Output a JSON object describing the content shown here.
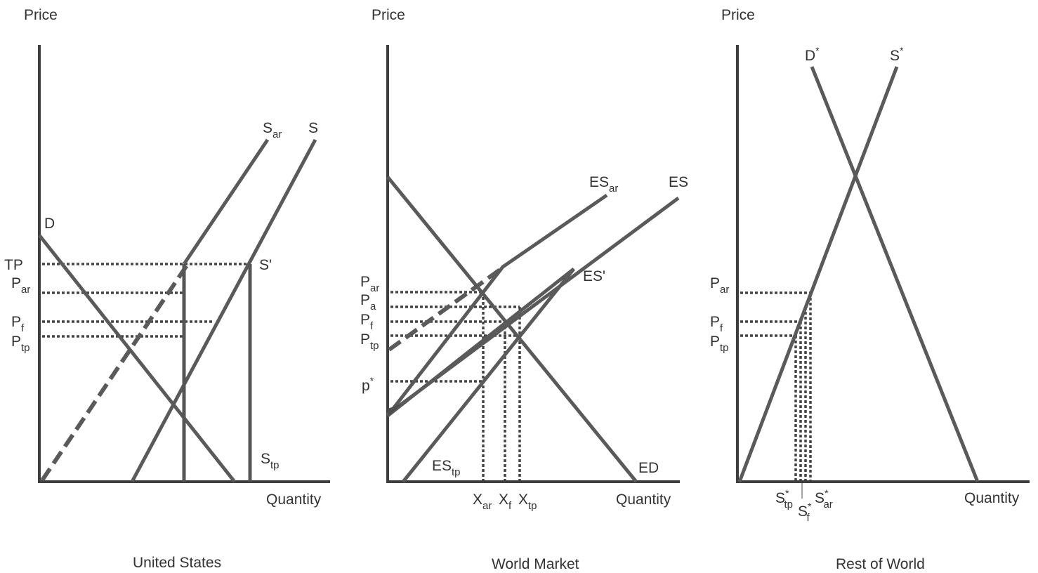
{
  "panels": {
    "us": {
      "axis_y": "Price",
      "axis_x": "Quantity",
      "caption": "United States",
      "curves": {
        "demand": "D",
        "supply": "S",
        "supply_ar": {
          "base": "S",
          "sub": "ar"
        },
        "supply_prime": "S'",
        "supply_tp": {
          "base": "S",
          "sub": "tp"
        }
      },
      "price_labels": {
        "tp": "TP",
        "p_ar": {
          "base": "P",
          "sub": "ar"
        },
        "p_f": {
          "base": "P",
          "sub": "f"
        },
        "p_tp": {
          "base": "P",
          "sub": "tp"
        }
      }
    },
    "world": {
      "axis_y": "Price",
      "axis_x": "Quantity",
      "caption": "World Market",
      "curves": {
        "es": "ES",
        "es_ar": {
          "base": "ES",
          "sub": "ar"
        },
        "es_prime": "ES'",
        "es_tp": {
          "base": "ES",
          "sub": "tp"
        },
        "ed": "ED"
      },
      "price_labels": {
        "p_ar": {
          "base": "P",
          "sub": "ar"
        },
        "p_a": {
          "base": "P",
          "sub": "a"
        },
        "p_f": {
          "base": "P",
          "sub": "f"
        },
        "p_tp": {
          "base": "P",
          "sub": "tp"
        },
        "p_star": {
          "base": "p",
          "sup": "*"
        }
      },
      "quantity_labels": {
        "x_ar": {
          "base": "X",
          "sub": "ar"
        },
        "x_f": {
          "base": "X",
          "sub": "f"
        },
        "x_tp": {
          "base": "X",
          "sub": "tp"
        }
      }
    },
    "row": {
      "axis_y": "Price",
      "axis_x": "Quantity",
      "caption": "Rest of World",
      "curves": {
        "demand": {
          "base": "D",
          "sup": "*"
        },
        "supply": {
          "base": "S",
          "sup": "*"
        }
      },
      "price_labels": {
        "p_ar": {
          "base": "P",
          "sub": "ar"
        },
        "p_f": {
          "base": "P",
          "sub": "f"
        },
        "p_tp": {
          "base": "P",
          "sub": "tp"
        }
      },
      "quantity_labels": {
        "s_tp": {
          "base": "S",
          "sup": "*",
          "sub": "tp"
        },
        "s_f": {
          "base": "S",
          "sup": "*",
          "sub": "f"
        },
        "s_ar": {
          "base": "S",
          "sup": "*",
          "sub": "ar"
        }
      }
    }
  }
}
